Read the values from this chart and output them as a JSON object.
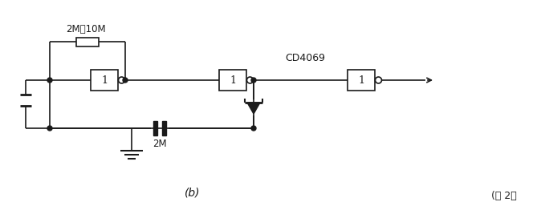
{
  "bg_color": "#ffffff",
  "line_color": "#1a1a1a",
  "label_2M10M": "2M～10M",
  "label_CD4069": "CD4069",
  "label_2M": "2M",
  "label_b": "(b)",
  "label_fig2": "(图 2）",
  "fig_width": 6.84,
  "fig_height": 2.62,
  "dpi": 100
}
